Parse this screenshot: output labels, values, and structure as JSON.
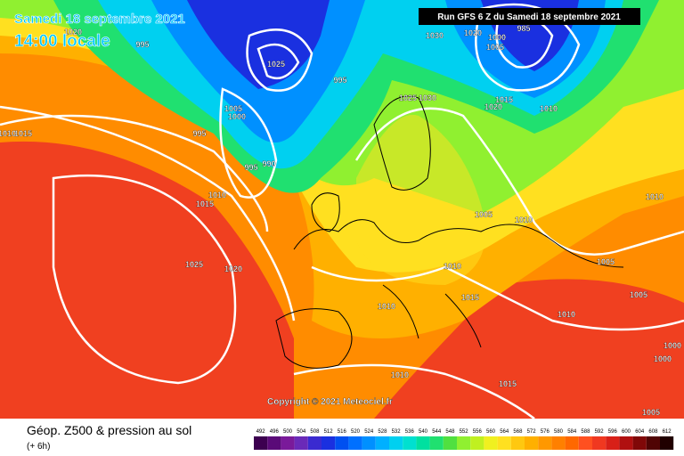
{
  "header": {
    "date": "Samedi 18 septembre 2021",
    "time": "14:00 locale",
    "run": "Run GFS 6 Z du Samedi 18 septembre 2021"
  },
  "copyright": "Copyright © 2021 Meteociel.fr",
  "footer": {
    "title": "Géop. Z500 & pression au sol",
    "lead": "(+ 6h)"
  },
  "scale": {
    "labels": [
      "492",
      "496",
      "500",
      "504",
      "508",
      "512",
      "516",
      "520",
      "524",
      "528",
      "532",
      "536",
      "540",
      "544",
      "548",
      "552",
      "556",
      "560",
      "564",
      "568",
      "572",
      "576",
      "580",
      "584",
      "588",
      "592",
      "596",
      "600",
      "604",
      "608",
      "612"
    ],
    "colors": [
      "#3c0050",
      "#5a0a78",
      "#7a1a9a",
      "#6a2ab8",
      "#3a2ad0",
      "#1a30e0",
      "#0050f0",
      "#0070ff",
      "#0090ff",
      "#00b0ff",
      "#00d0f0",
      "#00e0d0",
      "#00e0a0",
      "#20e070",
      "#50e040",
      "#90f030",
      "#c0f020",
      "#f0f020",
      "#ffe020",
      "#ffc810",
      "#ffb000",
      "#ff9800",
      "#ff8000",
      "#ff6800",
      "#ff5020",
      "#f03820",
      "#d82018",
      "#b01010",
      "#800808",
      "#500404",
      "#200000"
    ]
  },
  "isobars": [
    "995",
    "1020",
    "1025",
    "995",
    "1005",
    "1000",
    "995",
    "995",
    "990",
    "1010",
    "1015",
    "1025",
    "1020",
    "1030",
    "1020",
    "1005",
    "985",
    "1000",
    "1025",
    "1030",
    "1015",
    "1020",
    "1010",
    "1005",
    "1010",
    "1010",
    "1015",
    "1010",
    "1010",
    "1015",
    "1010",
    "1005",
    "1005",
    "1010",
    "1000",
    "1000",
    "1005",
    "1015",
    "1010"
  ]
}
